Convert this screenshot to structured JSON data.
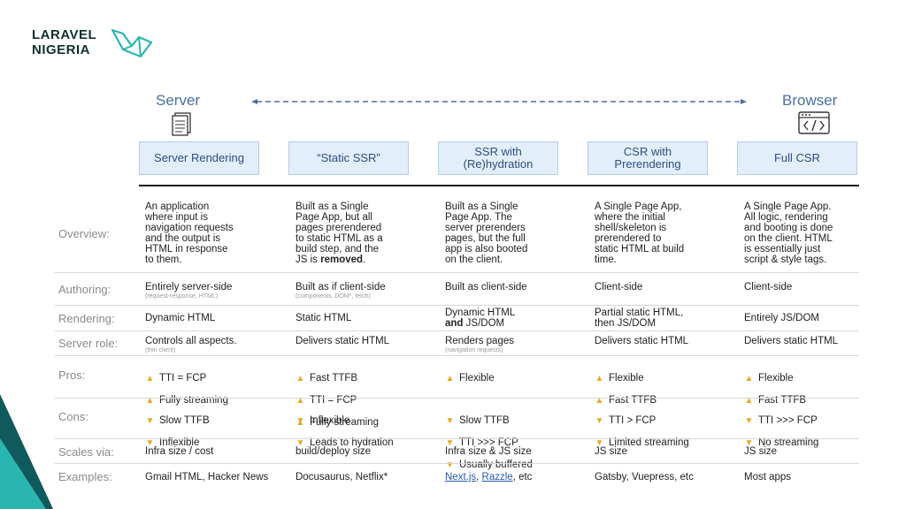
{
  "brand": {
    "line1": "LARAVEL",
    "line2": "NIGERIA"
  },
  "axis": {
    "left": "Server",
    "right": "Browser"
  },
  "columns": [
    {
      "heading": "Server Rendering"
    },
    {
      "heading": "“Static SSR”"
    },
    {
      "heading": "SSR with\n(Re)hydration"
    },
    {
      "heading": "CSR with\nPrerendering"
    },
    {
      "heading": "Full CSR"
    }
  ],
  "rows": {
    "overview": {
      "label": "Overview:",
      "cells": [
        "An application\nwhere input is\nnavigation requests\nand the output is\nHTML in response\nto them.",
        "Built as a Single\nPage App, but all\npages prerendered\nto static HTML as a\nbuild step, and the\nJS is ",
        "Built as a Single\nPage App. The\nserver prerenders\npages, but the full\napp is also booted\non the client.",
        "A Single Page App,\nwhere the initial\nshell/skeleton is\nprerendered to\nstatic HTML at build\ntime.",
        "A Single Page App.\nAll logic, rendering\nand booting is done\non the client. HTML\nis essentially just\nscript & style tags."
      ],
      "bold_word": "removed",
      "bold_suffix": "."
    },
    "authoring": {
      "label": "Authoring:",
      "cells": [
        {
          "main": "Entirely server-side",
          "note": "(request-response, HTML)"
        },
        {
          "main": "Built as if client-side",
          "note": "(components, DOM*, fetch)"
        },
        {
          "main": "Built as client-side",
          "note": ""
        },
        {
          "main": "Client-side",
          "note": ""
        },
        {
          "main": "Client-side",
          "note": ""
        }
      ]
    },
    "rendering": {
      "label": "Rendering:",
      "cells": [
        "Dynamic HTML",
        "Static HTML",
        {
          "pre": "Dynamic HTML",
          "bold": "and",
          "post": " JS/DOM"
        },
        "Partial static HTML,\nthen JS/DOM",
        "Entirely JS/DOM"
      ]
    },
    "server_role": {
      "label": "Server role:",
      "cells": [
        {
          "main": "Controls all aspects.",
          "note": "(thin client)"
        },
        {
          "main": "Delivers static HTML",
          "note": ""
        },
        {
          "main": "Renders pages",
          "note": "(navigation requests)"
        },
        {
          "main": "Delivers static HTML",
          "note": ""
        },
        {
          "main": "Delivers static HTML",
          "note": ""
        }
      ]
    },
    "pros": {
      "label": "Pros:",
      "cells": [
        [
          "TTI = FCP",
          "Fully streaming"
        ],
        [
          "Fast TTFB",
          "TTI = FCP",
          "Fully streaming"
        ],
        [
          "Flexible"
        ],
        [
          "Flexible",
          "Fast TTFB"
        ],
        [
          "Flexible",
          "Fast TTFB"
        ]
      ]
    },
    "cons": {
      "label": "Cons:",
      "cells": [
        [
          "Slow TTFB",
          "Inflexible"
        ],
        [
          "Inflexible",
          "Leads to hydration"
        ],
        [
          "Slow TTFB",
          "TTI >>> FCP",
          "Usually buffered"
        ],
        [
          "TTI > FCP",
          "Limited streaming"
        ],
        [
          "TTI >>> FCP",
          "No streaming"
        ]
      ]
    },
    "scales": {
      "label": "Scales via:",
      "cells": [
        "Infra size / cost",
        "build/deploy size",
        "Infra size & JS size",
        "JS size",
        "JS size"
      ]
    },
    "examples": {
      "label": "Examples:",
      "cells": [
        {
          "text": "Gmail HTML, Hacker News"
        },
        {
          "text": "Docusaurus, Netflix*"
        },
        {
          "link1": "Next.js",
          "sep": ", ",
          "link2": "Razzle",
          "rest": ", etc"
        },
        {
          "text": "Gatsby, Vuepress, etc"
        },
        {
          "text": "Most apps"
        }
      ]
    }
  },
  "colors": {
    "accent": "#4c6f9e",
    "header_fill": "#e3eefb",
    "thumb": "#e9a925",
    "brand_teal": "#0e5a5c"
  }
}
